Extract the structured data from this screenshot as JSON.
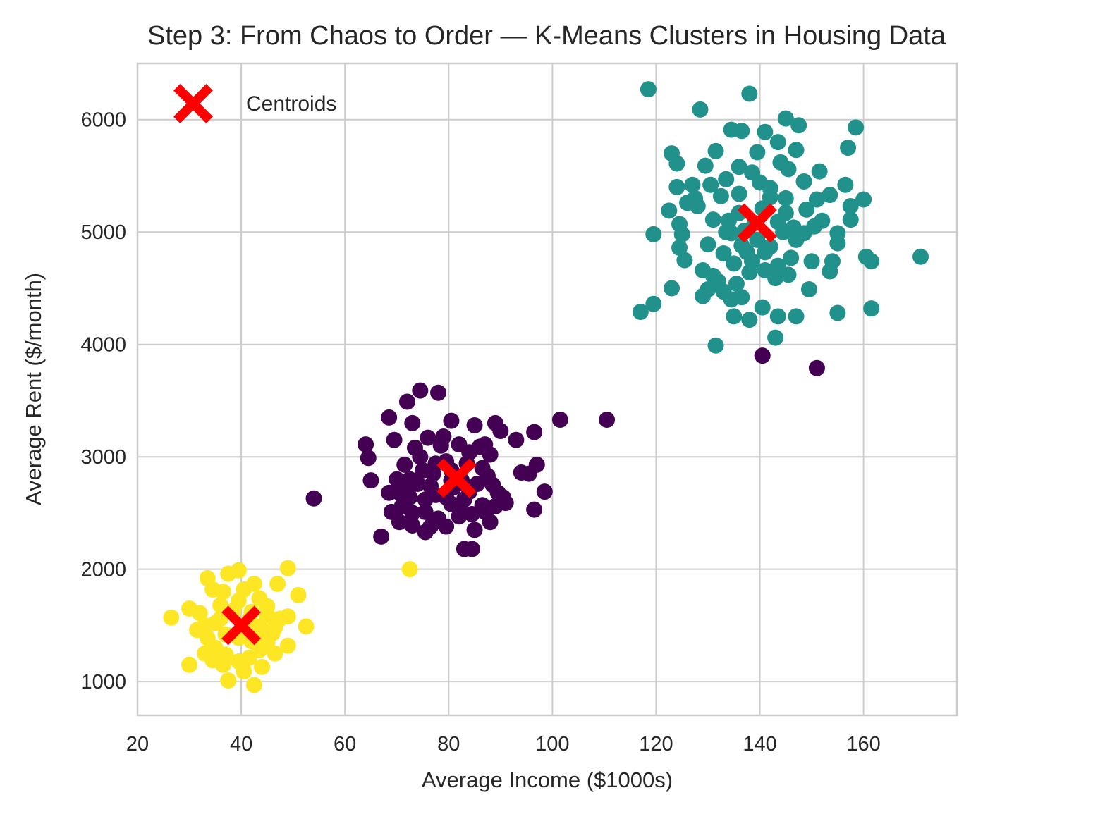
{
  "chart_data": {
    "type": "scatter",
    "title": "Step 3: From Chaos to Order — K-Means Clusters in Housing Data",
    "xlabel": "Average Income ($1000s)",
    "ylabel": "Average Rent ($/month)",
    "xlim": [
      20,
      178
    ],
    "ylim": [
      700,
      6500
    ],
    "xticks": [
      "20",
      "40",
      "60",
      "80",
      "100",
      "120",
      "140",
      "160"
    ],
    "yticks": [
      "1000",
      "2000",
      "3000",
      "4000",
      "5000",
      "6000"
    ],
    "grid": true,
    "legend": {
      "position": "top-left",
      "entries": [
        "Centroids"
      ]
    },
    "colors": {
      "cluster_0": "#440154",
      "cluster_1": "#21918c",
      "cluster_2": "#fde725",
      "centroid": "#ff0000",
      "grid": "#cccccc",
      "frame": "#cccccc"
    },
    "series": [
      {
        "cluster": 0,
        "color": "#440154",
        "points": [
          [
            54,
            2630
          ],
          [
            64,
            3110
          ],
          [
            64.5,
            2990
          ],
          [
            65,
            2790
          ],
          [
            67,
            2290
          ],
          [
            68.5,
            3350
          ],
          [
            69.5,
            3150
          ],
          [
            72,
            3490
          ],
          [
            73,
            3300
          ],
          [
            74.5,
            3590
          ],
          [
            78,
            3570
          ],
          [
            80.5,
            3320
          ],
          [
            85,
            3280
          ],
          [
            89,
            3300
          ],
          [
            90,
            3230
          ],
          [
            93,
            3150
          ],
          [
            96.5,
            3220
          ],
          [
            101.5,
            3330
          ],
          [
            110.5,
            3330
          ],
          [
            97,
            2930
          ],
          [
            94,
            2860
          ],
          [
            95.5,
            2850
          ],
          [
            98.5,
            2690
          ],
          [
            96.5,
            2530
          ],
          [
            91,
            2590
          ],
          [
            88,
            2420
          ],
          [
            85,
            2350
          ],
          [
            83,
            2180
          ],
          [
            84.5,
            2180
          ],
          [
            75.5,
            2330
          ],
          [
            73,
            2390
          ],
          [
            70.5,
            2420
          ],
          [
            69,
            2510
          ],
          [
            68.5,
            2680
          ],
          [
            70,
            2800
          ],
          [
            71.5,
            2930
          ],
          [
            73.5,
            3080
          ],
          [
            76,
            3170
          ],
          [
            79,
            3180
          ],
          [
            82,
            3110
          ],
          [
            86,
            3090
          ],
          [
            88,
            3020
          ],
          [
            87.5,
            2830
          ],
          [
            89.5,
            2680
          ],
          [
            86.5,
            2570
          ],
          [
            84.5,
            2490
          ],
          [
            80.5,
            2580
          ],
          [
            78,
            2450
          ],
          [
            75.5,
            2510
          ],
          [
            72.5,
            2640
          ],
          [
            74,
            2760
          ],
          [
            77,
            2850
          ],
          [
            79.5,
            2960
          ],
          [
            82.5,
            2790
          ],
          [
            84,
            2690
          ],
          [
            81,
            2730
          ],
          [
            77.5,
            2660
          ],
          [
            75.5,
            2620
          ],
          [
            79.5,
            2640
          ],
          [
            83,
            2620
          ],
          [
            85.5,
            2760
          ],
          [
            86.5,
            2900
          ],
          [
            83.5,
            2940
          ],
          [
            80.5,
            2880
          ],
          [
            77.5,
            2940
          ],
          [
            75,
            2880
          ],
          [
            72.5,
            2800
          ],
          [
            70.5,
            2680
          ],
          [
            71,
            2560
          ],
          [
            73,
            2500
          ],
          [
            76.5,
            2380
          ],
          [
            79.5,
            2380
          ],
          [
            82,
            2470
          ],
          [
            87,
            2510
          ],
          [
            89,
            2560
          ],
          [
            90.5,
            2640
          ],
          [
            88.5,
            2750
          ],
          [
            87,
            3110
          ],
          [
            84,
            3040
          ],
          [
            78.5,
            3100
          ],
          [
            74.5,
            3000
          ],
          [
            76.5,
            2740
          ],
          [
            80.5,
            2790
          ],
          [
            82,
            2560
          ],
          [
            71.5,
            2720
          ],
          [
            140.5,
            3900
          ],
          [
            151,
            3790
          ]
        ]
      },
      {
        "cluster": 1,
        "color": "#21918c",
        "points": [
          [
            118.5,
            6270
          ],
          [
            138,
            6230
          ],
          [
            128.5,
            6090
          ],
          [
            145,
            6010
          ],
          [
            147.5,
            5950
          ],
          [
            158.5,
            5930
          ],
          [
            134.5,
            5910
          ],
          [
            136.5,
            5900
          ],
          [
            141,
            5890
          ],
          [
            143.5,
            5800
          ],
          [
            131.5,
            5720
          ],
          [
            139.5,
            5710
          ],
          [
            147,
            5730
          ],
          [
            123,
            5700
          ],
          [
            124,
            5610
          ],
          [
            129.5,
            5590
          ],
          [
            136,
            5580
          ],
          [
            151.5,
            5540
          ],
          [
            157,
            5750
          ],
          [
            145.5,
            5560
          ],
          [
            138.5,
            5530
          ],
          [
            133.5,
            5470
          ],
          [
            130.5,
            5420
          ],
          [
            124,
            5400
          ],
          [
            127,
            5420
          ],
          [
            142,
            5390
          ],
          [
            148.5,
            5450
          ],
          [
            156.5,
            5420
          ],
          [
            153.5,
            5330
          ],
          [
            151,
            5290
          ],
          [
            160,
            5290
          ],
          [
            157.5,
            5230
          ],
          [
            145,
            5170
          ],
          [
            149,
            5200
          ],
          [
            136,
            5170
          ],
          [
            131,
            5110
          ],
          [
            122.5,
            5190
          ],
          [
            126,
            5260
          ],
          [
            124.5,
            5070
          ],
          [
            128,
            5230
          ],
          [
            134,
            5100
          ],
          [
            140.5,
            5210
          ],
          [
            143.5,
            5090
          ],
          [
            146.5,
            5040
          ],
          [
            148.5,
            4990
          ],
          [
            152,
            5100
          ],
          [
            155,
            4990
          ],
          [
            157.5,
            5110
          ],
          [
            155,
            4900
          ],
          [
            154,
            4740
          ],
          [
            153.5,
            4650
          ],
          [
            150,
            4740
          ],
          [
            146,
            4770
          ],
          [
            143.5,
            4700
          ],
          [
            141,
            4660
          ],
          [
            138,
            4640
          ],
          [
            135.5,
            4540
          ],
          [
            133,
            4470
          ],
          [
            131,
            4610
          ],
          [
            129,
            4660
          ],
          [
            125.5,
            4750
          ],
          [
            124.5,
            4860
          ],
          [
            125,
            4980
          ],
          [
            119.5,
            4980
          ],
          [
            130,
            4890
          ],
          [
            133,
            4810
          ],
          [
            136.5,
            4880
          ],
          [
            139.5,
            4930
          ],
          [
            142,
            4870
          ],
          [
            137,
            5010
          ],
          [
            134.5,
            4990
          ],
          [
            139,
            5080
          ],
          [
            144.5,
            5000
          ],
          [
            141,
            4820
          ],
          [
            138.5,
            4740
          ],
          [
            135,
            4720
          ],
          [
            143,
            4590
          ],
          [
            145.5,
            4620
          ],
          [
            149.5,
            4490
          ],
          [
            129,
            4430
          ],
          [
            134.5,
            4400
          ],
          [
            130,
            4490
          ],
          [
            123,
            4500
          ],
          [
            119.5,
            4360
          ],
          [
            117,
            4290
          ],
          [
            135,
            4250
          ],
          [
            140.5,
            4330
          ],
          [
            143.5,
            4250
          ],
          [
            147,
            4250
          ],
          [
            138,
            4220
          ],
          [
            155,
            4280
          ],
          [
            161.5,
            4320
          ],
          [
            143,
            4060
          ],
          [
            131.5,
            3990
          ],
          [
            161.5,
            4740
          ],
          [
            160.5,
            4780
          ],
          [
            171,
            4780
          ],
          [
            145,
            5300
          ],
          [
            142,
            5310
          ],
          [
            132.5,
            5320
          ],
          [
            136,
            5340
          ],
          [
            127.5,
            5300
          ],
          [
            133.5,
            5000
          ],
          [
            150.5,
            5050
          ],
          [
            147,
            4930
          ],
          [
            137.5,
            4820
          ],
          [
            132,
            4560
          ],
          [
            136.5,
            4420
          ],
          [
            140,
            5440
          ],
          [
            144,
            5620
          ]
        ]
      },
      {
        "cluster": 2,
        "color": "#fde725",
        "points": [
          [
            26.5,
            1570
          ],
          [
            30,
            1650
          ],
          [
            30,
            1150
          ],
          [
            33.5,
            1920
          ],
          [
            34.5,
            1820
          ],
          [
            36.5,
            1800
          ],
          [
            37.5,
            1960
          ],
          [
            39.5,
            1990
          ],
          [
            40.5,
            1820
          ],
          [
            42.5,
            1870
          ],
          [
            43.5,
            1740
          ],
          [
            45,
            1670
          ],
          [
            47,
            1870
          ],
          [
            49,
            2010
          ],
          [
            51,
            1770
          ],
          [
            47.5,
            1560
          ],
          [
            49,
            1580
          ],
          [
            46.5,
            1480
          ],
          [
            43.5,
            1490
          ],
          [
            41.5,
            1550
          ],
          [
            38.5,
            1630
          ],
          [
            36,
            1560
          ],
          [
            33,
            1500
          ],
          [
            32,
            1610
          ],
          [
            31.5,
            1460
          ],
          [
            33.5,
            1390
          ],
          [
            35,
            1300
          ],
          [
            37,
            1240
          ],
          [
            39.5,
            1180
          ],
          [
            41.5,
            1210
          ],
          [
            43.5,
            1280
          ],
          [
            45,
            1350
          ],
          [
            46.5,
            1250
          ],
          [
            49,
            1320
          ],
          [
            52.5,
            1490
          ],
          [
            46,
            1430
          ],
          [
            44,
            1390
          ],
          [
            42,
            1360
          ],
          [
            39.5,
            1390
          ],
          [
            37,
            1420
          ],
          [
            35,
            1520
          ],
          [
            34.5,
            1190
          ],
          [
            36.5,
            1150
          ],
          [
            37.5,
            1010
          ],
          [
            42.5,
            970
          ],
          [
            40.5,
            1090
          ],
          [
            33,
            1250
          ],
          [
            39.5,
            1720
          ],
          [
            36,
            1680
          ],
          [
            42,
            1620
          ],
          [
            45,
            1590
          ],
          [
            44,
            1130
          ],
          [
            72.5,
            2000
          ]
        ]
      }
    ],
    "centroids": [
      {
        "cluster": 0,
        "x": 81.5,
        "y": 2810
      },
      {
        "cluster": 1,
        "x": 139.5,
        "y": 5080
      },
      {
        "cluster": 2,
        "x": 40,
        "y": 1500
      }
    ]
  }
}
